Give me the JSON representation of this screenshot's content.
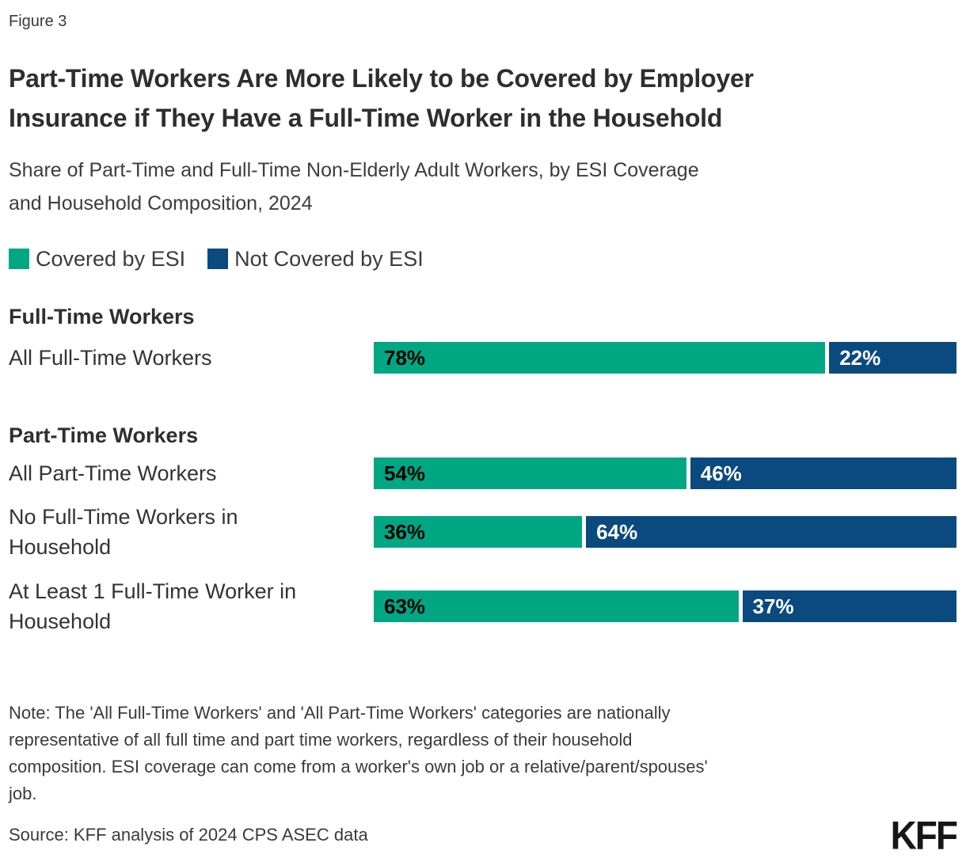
{
  "header": {
    "figure_label": "Figure 3",
    "title": "Part-Time Workers Are More Likely to be Covered by Employer Insurance if They Have a Full-Time Worker in the Household",
    "title_lines": [
      "Part-Time Workers Are More Likely to be Covered by Employer",
      "Insurance if They Have a Full-Time Worker in the Household"
    ],
    "subtitle": "Share of Part-Time and Full-Time Non-Elderly Adult Workers, by ESI Coverage and Household Composition, 2024",
    "subtitle_lines": [
      "Share of Part-Time and Full-Time Non-Elderly Adult Workers, by ESI Coverage",
      "and Household Composition, 2024"
    ]
  },
  "legend": {
    "items": [
      {
        "label": "Covered by ESI",
        "color": "#00A782"
      },
      {
        "label": "Not Covered by ESI",
        "color": "#0B4A7F"
      }
    ]
  },
  "chart_data": {
    "type": "bar",
    "orientation": "horizontal",
    "stacked": true,
    "x_range": [
      0,
      100
    ],
    "unit": "%",
    "title": "Part-Time Workers Are More Likely to be Covered by Employer Insurance if They Have a Full-Time Worker in the Household",
    "series_names": [
      "Covered by ESI",
      "Not Covered by ESI"
    ],
    "colors": {
      "covered": "#00A782",
      "not_covered": "#0B4A7F"
    },
    "sections": [
      {
        "header": "Full-Time Workers",
        "rows": [
          {
            "label": "All Full-Time Workers",
            "label_lines": [
              "All Full-Time Workers"
            ],
            "covered_pct": 78,
            "not_covered_pct": 22,
            "covered_text": "78%",
            "not_covered_text": "22%"
          }
        ]
      },
      {
        "header": "Part-Time Workers",
        "rows": [
          {
            "label": "All Part-Time Workers",
            "label_lines": [
              "All Part-Time Workers"
            ],
            "covered_pct": 54,
            "not_covered_pct": 46,
            "covered_text": "54%",
            "not_covered_text": "46%"
          },
          {
            "label": "No Full-Time Workers in Household",
            "label_lines": [
              "No Full-Time Workers in",
              "Household"
            ],
            "covered_pct": 36,
            "not_covered_pct": 64,
            "covered_text": "36%",
            "not_covered_text": "64%"
          },
          {
            "label": "At Least 1 Full-Time Worker in Household",
            "label_lines": [
              "At Least 1 Full-Time Worker in",
              "Household"
            ],
            "covered_pct": 63,
            "not_covered_pct": 37,
            "covered_text": "63%",
            "not_covered_text": "37%"
          }
        ]
      }
    ]
  },
  "footer": {
    "note": "Note: The 'All Full-Time Workers' and 'All Part-Time Workers' categories are nationally representative of all full time and part time workers, regardless of their household composition. ESI coverage can come from a worker's own job or a relative/parent/spouses' job.",
    "note_lines": [
      "Note: The 'All Full-Time Workers' and 'All Part-Time Workers' categories are nationally",
      "representative of all full time and part time workers, regardless of their household",
      "composition. ESI coverage can come from a worker's own job or a relative/parent/spouses'",
      "job."
    ],
    "source": "Source: KFF analysis of 2024 CPS ASEC data",
    "logo": "KFF"
  }
}
